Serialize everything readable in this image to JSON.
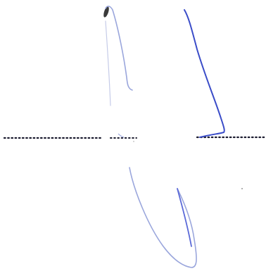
{
  "colors": {
    "background": "#ffffff",
    "ink_light": "#9aa6dc",
    "ink_dark": "#3a4cc8",
    "ink_mid": "#5b6ad8",
    "dots": "#1a1a2e",
    "blot": "#3a3a3a"
  },
  "icons": {
    "stroke-left": "hand-drawn-left-stroke",
    "stroke-right": "hand-drawn-right-stroke",
    "baseline": "dotted-baseline"
  }
}
